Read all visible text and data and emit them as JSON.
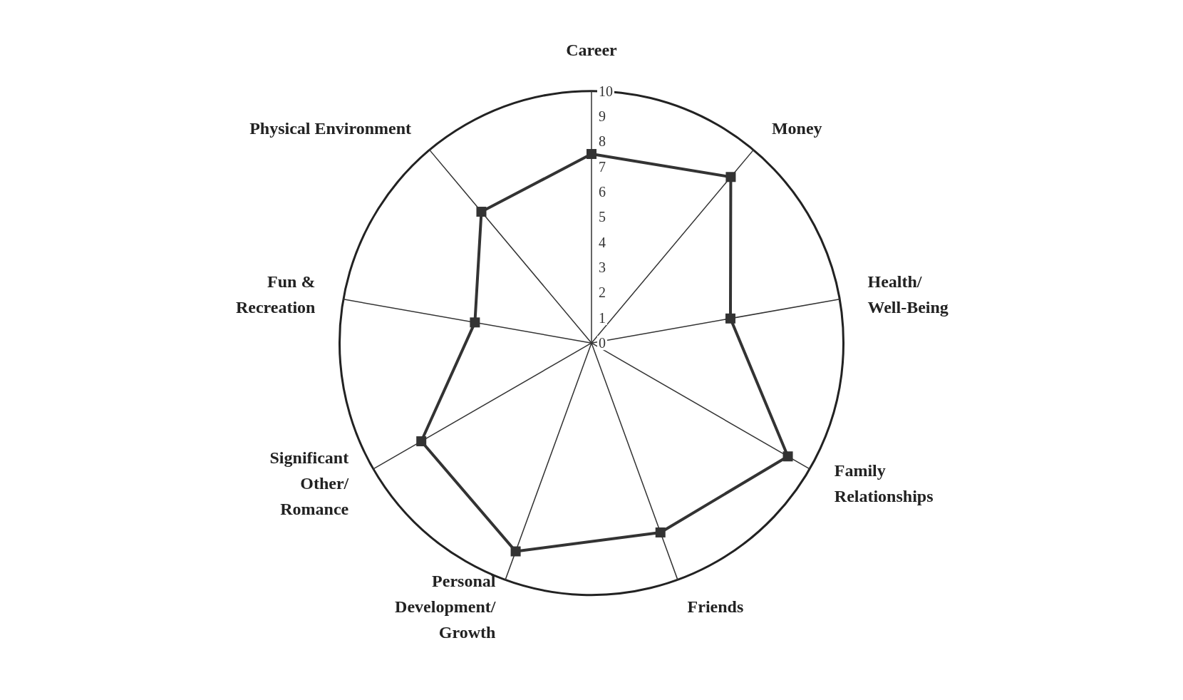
{
  "chart_data": {
    "type": "radar",
    "categories": [
      "Career",
      "Money",
      "Health/\nWell-Being",
      "Family\nRelationships",
      "Friends",
      "Personal\nDevelopment/\nGrowth",
      "Significant\nOther/\nRomance",
      "Fun &\nRecreation",
      "Physical Environment"
    ],
    "series": [
      {
        "color": "#333333",
        "values": [
          7.5,
          8.6,
          5.6,
          9,
          8,
          8.8,
          7.8,
          4.7,
          6.8
        ]
      }
    ],
    "ylim": [
      0,
      10
    ],
    "yticks": [
      0,
      1,
      2,
      3,
      4,
      5,
      6,
      7,
      8,
      9,
      10
    ],
    "grid": false,
    "marker": "square",
    "line_style": "solid"
  }
}
